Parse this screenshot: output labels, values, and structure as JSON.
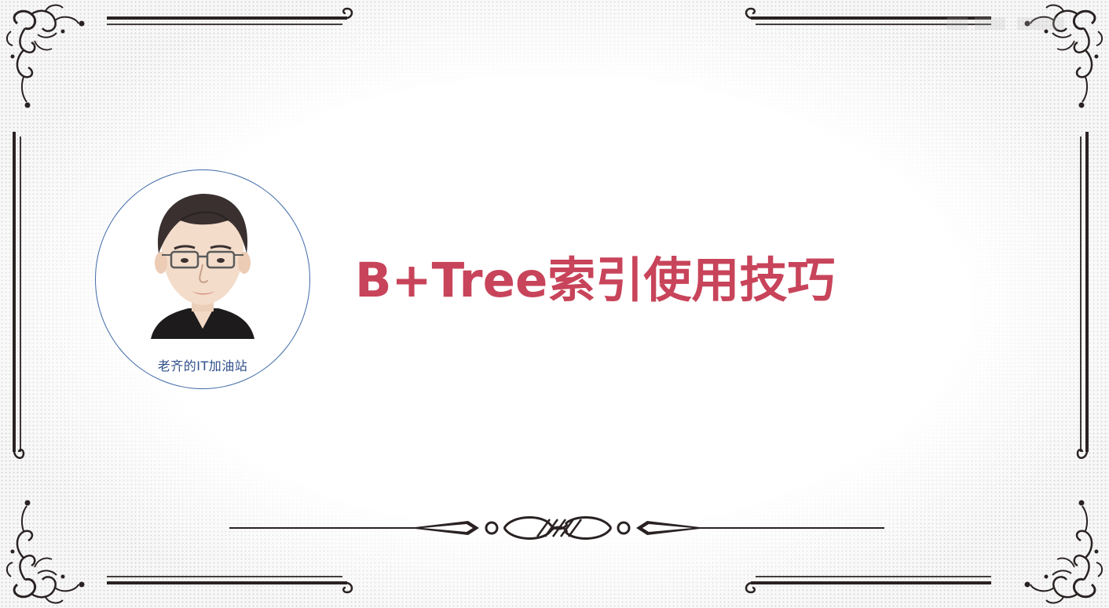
{
  "slide": {
    "title": "B+Tree索引使用技巧",
    "avatar_caption": "老齐的IT加油站"
  },
  "colors": {
    "title": "#c8445a",
    "avatar_border": "#3f6aa8",
    "caption": "#2f4f8a",
    "ornament": "#2a2222"
  },
  "icons": {
    "corner": "flourish-corner-icon",
    "divider": "scroll-divider-icon",
    "avatar": "caricature-portrait-icon"
  }
}
